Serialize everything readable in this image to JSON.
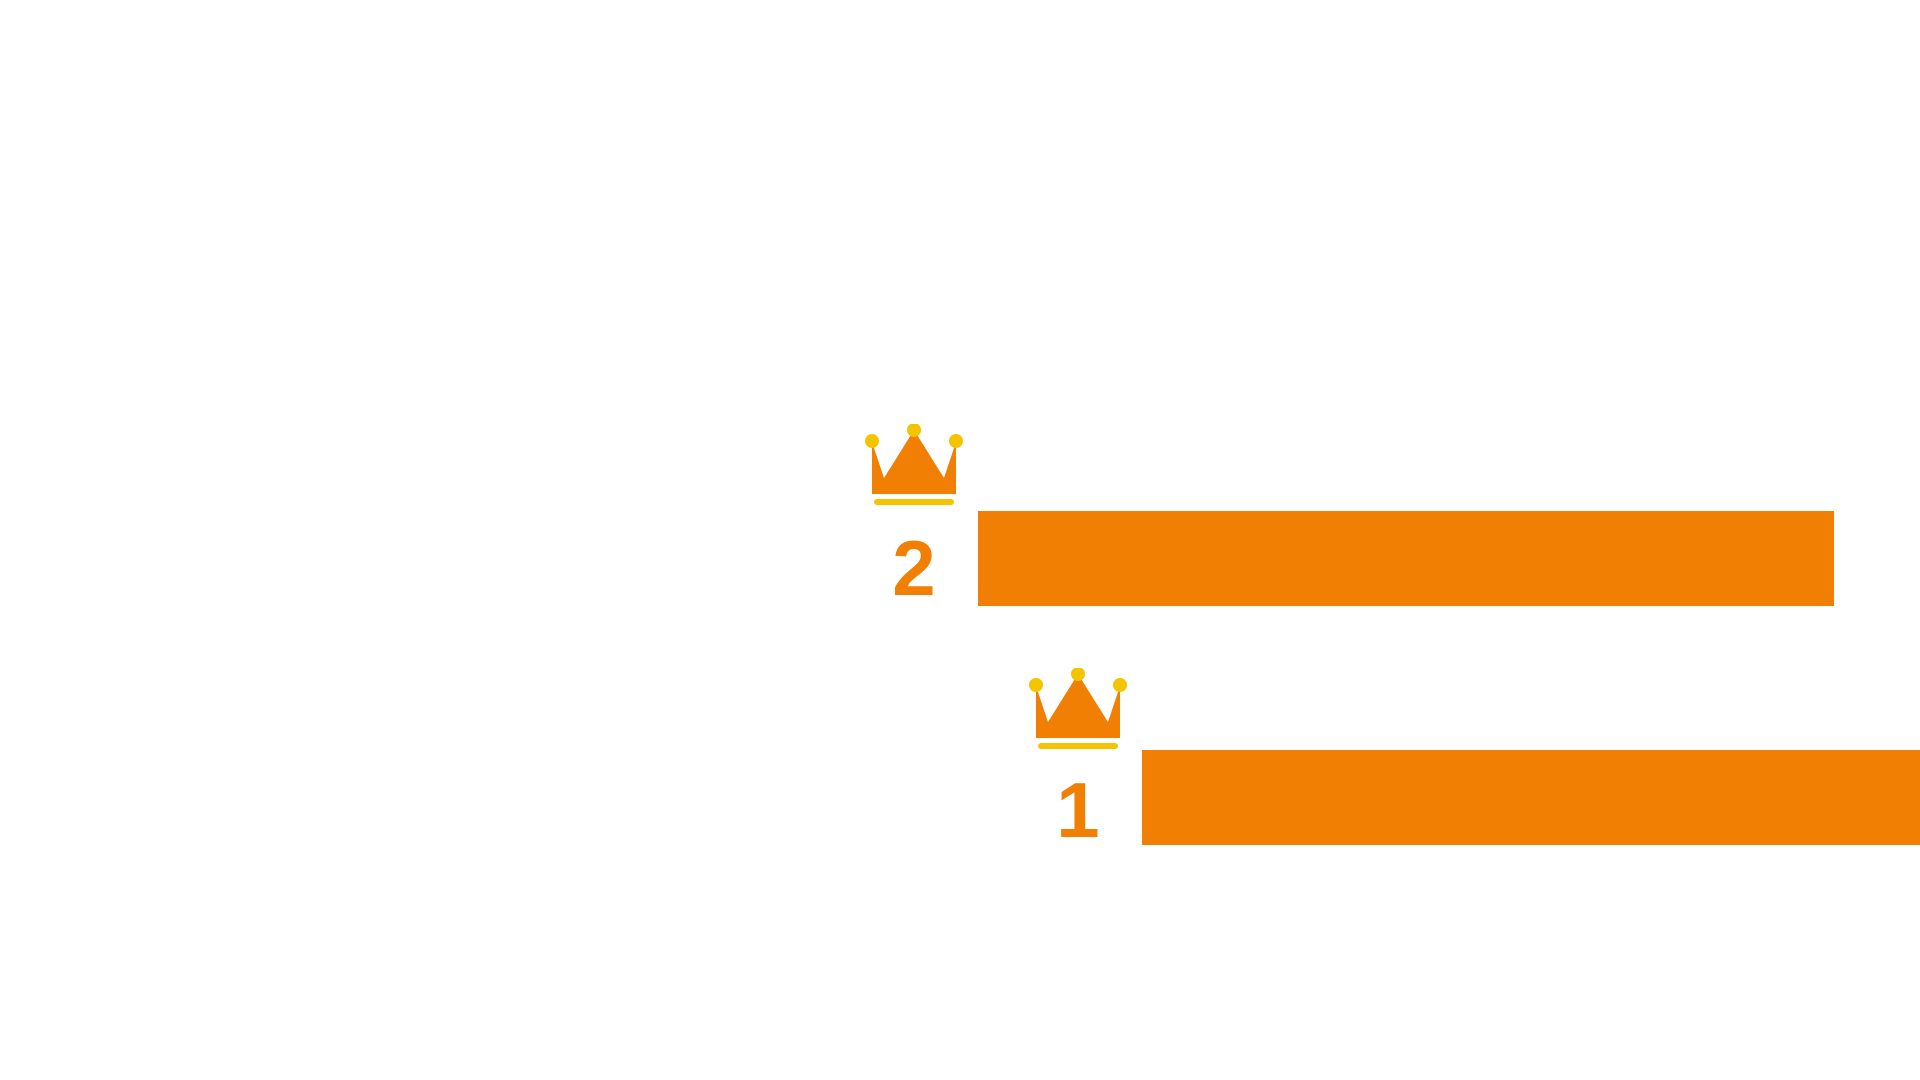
{
  "colors": {
    "accent": "#F07F04",
    "crown_body": "#F07F04",
    "crown_jewel": "#F5C400",
    "background": "#FFFFFF"
  },
  "entries": [
    {
      "rank": "2",
      "icon": "crown-icon",
      "bar_label": ""
    },
    {
      "rank": "1",
      "icon": "crown-icon",
      "bar_label": ""
    }
  ]
}
